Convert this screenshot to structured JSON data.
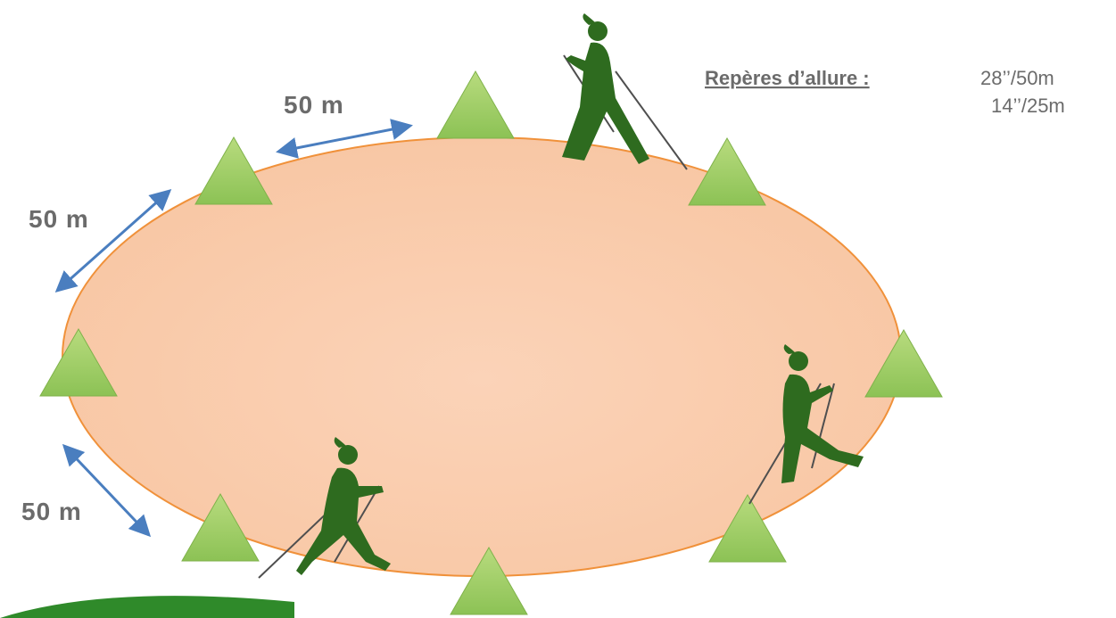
{
  "distance_labels": [
    "50 m",
    "50 m",
    "50 m"
  ],
  "pace": {
    "heading": "Repères d’allure :",
    "lines": [
      "28’’/50m",
      "14’’/25m"
    ]
  }
}
